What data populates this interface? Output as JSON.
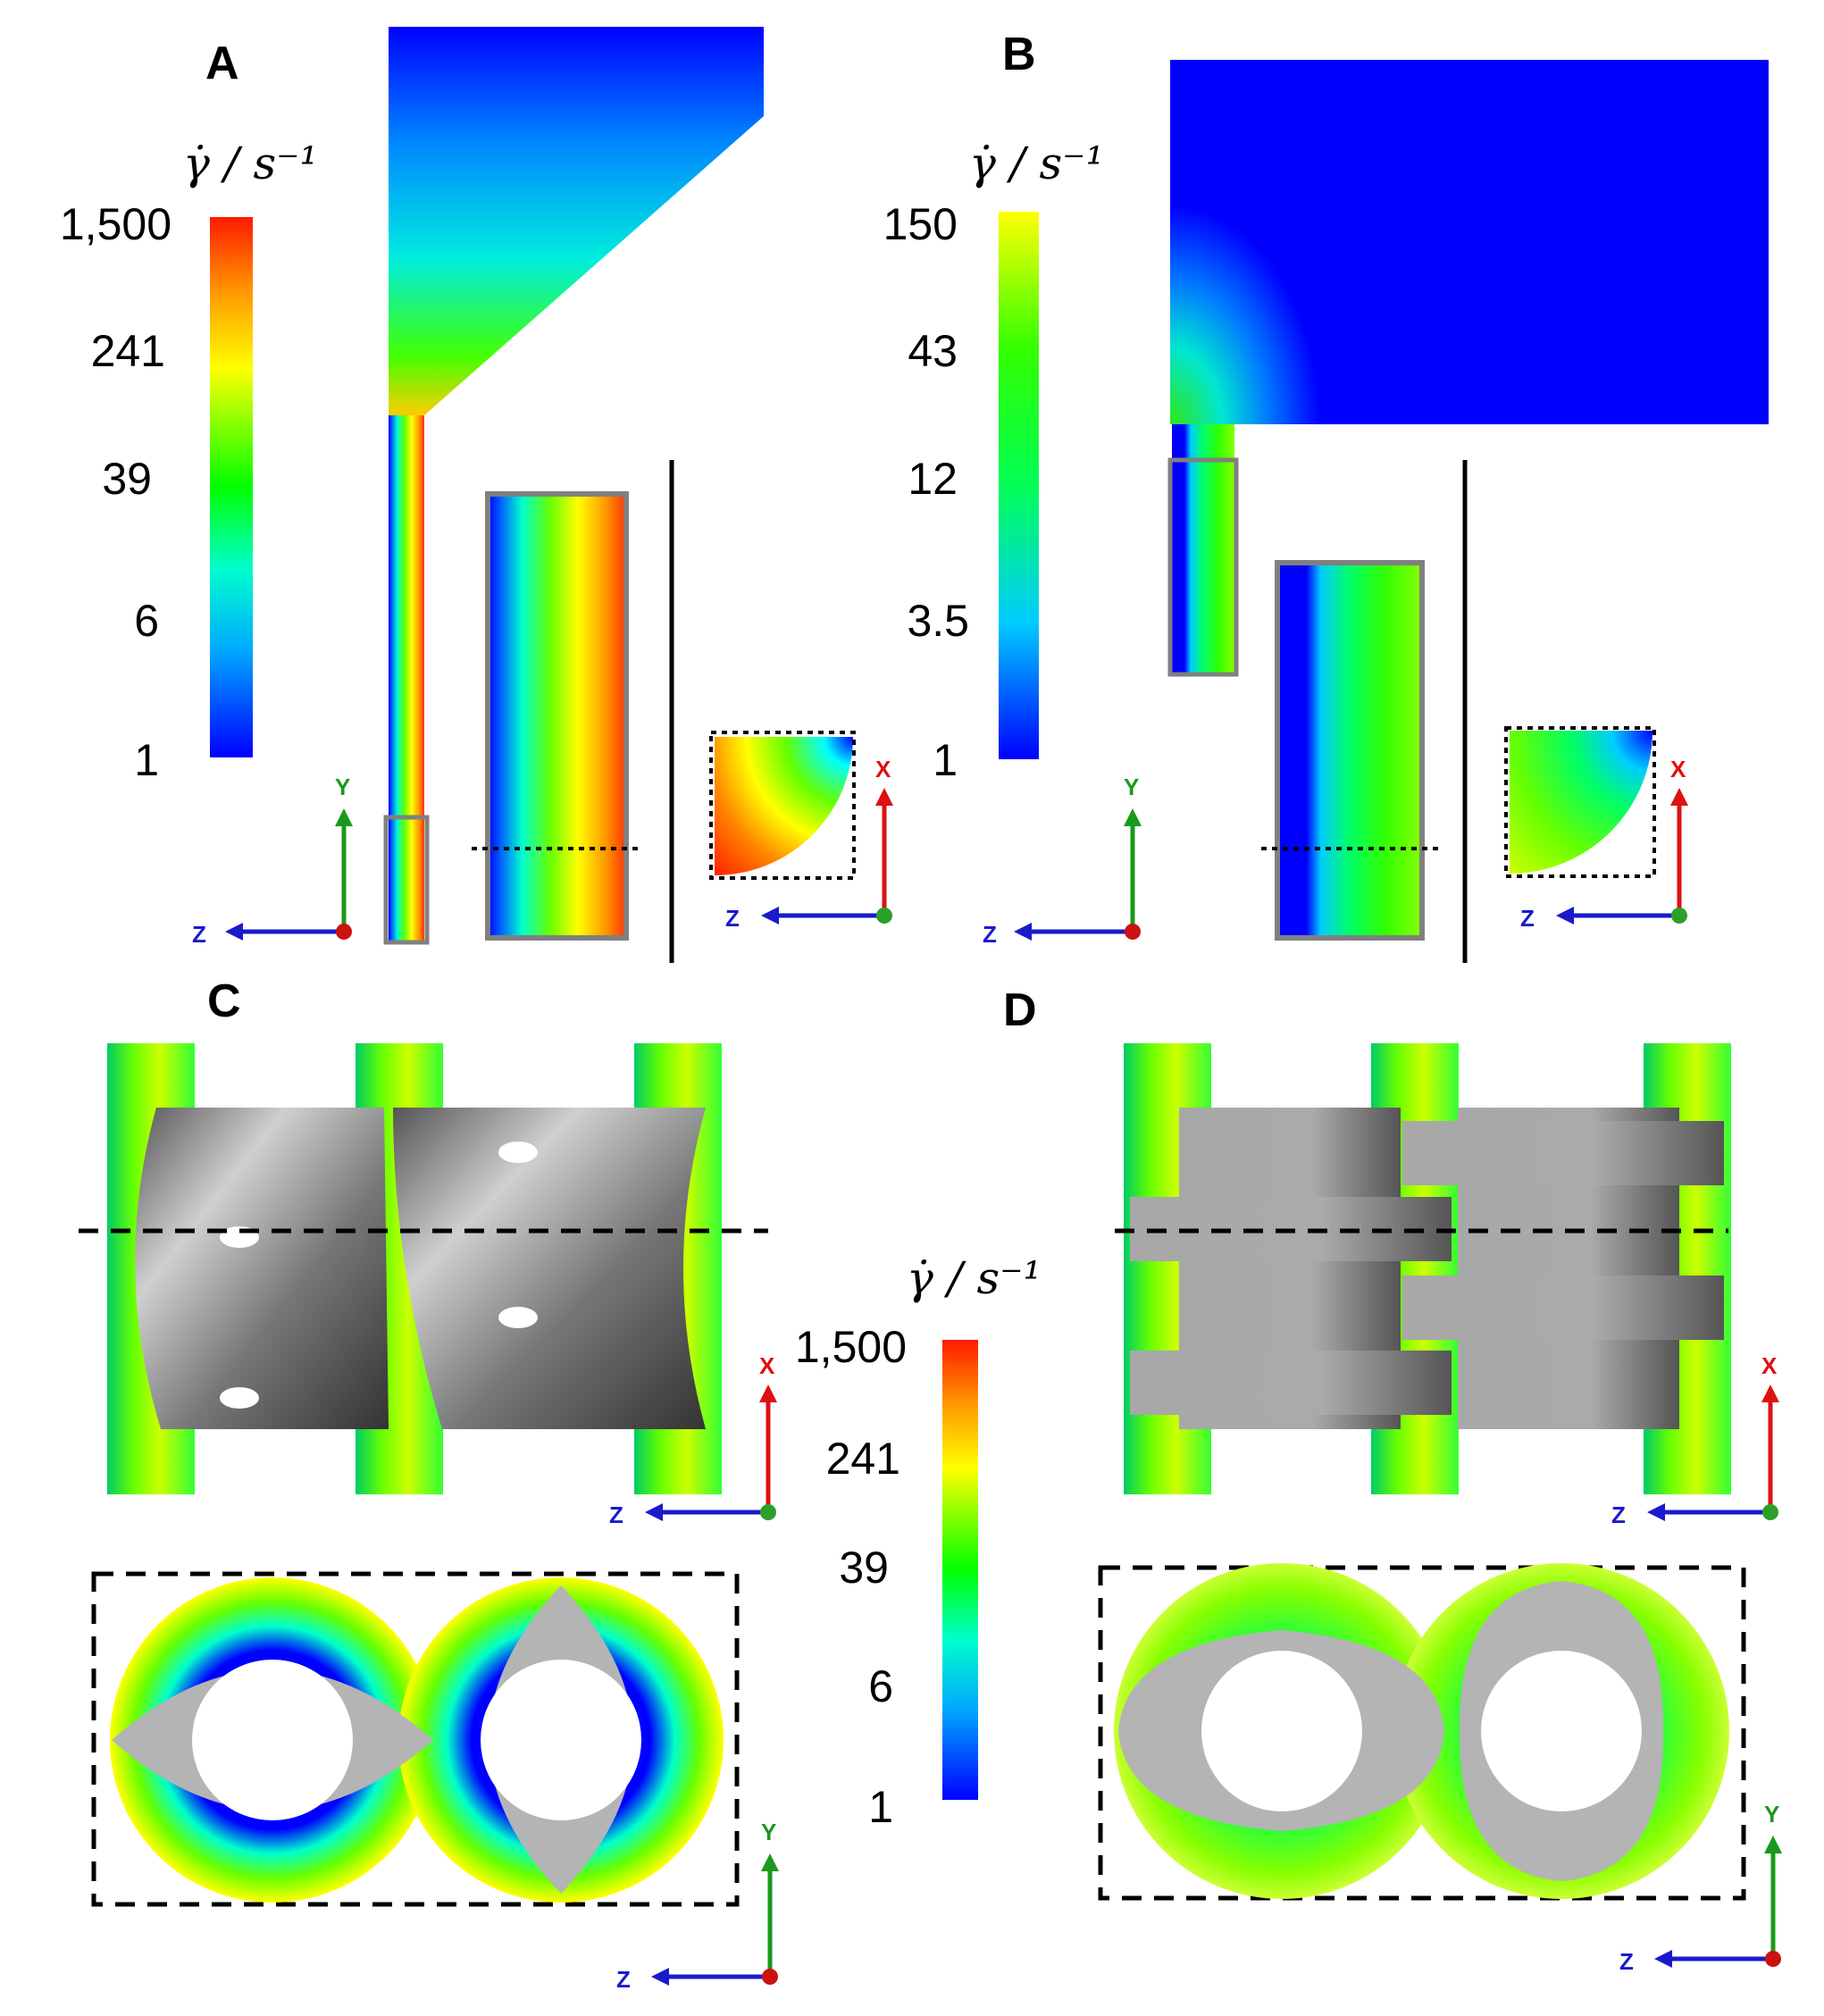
{
  "panels": {
    "a": "A",
    "b": "B",
    "c": "C",
    "d": "D"
  },
  "colorbar_unit": "γ̇ / s⁻¹",
  "colorbars": {
    "a": {
      "ticks": [
        "1,500",
        "241",
        "39",
        "6",
        "1"
      ]
    },
    "b": {
      "ticks": [
        "150",
        "43",
        "12",
        "3.5",
        "1"
      ]
    },
    "cd": {
      "ticks": [
        "1,500",
        "241",
        "39",
        "6",
        "1"
      ]
    }
  },
  "axes": {
    "x": "X",
    "y": "Y",
    "z": "Z"
  },
  "colors": {
    "blue": "#0000ff",
    "cyan": "#00ffff",
    "green": "#00ff00",
    "yellow": "#ffff00",
    "orange": "#ff8000",
    "red": "#ff0000",
    "screw_gray": "#b4b4b4"
  }
}
